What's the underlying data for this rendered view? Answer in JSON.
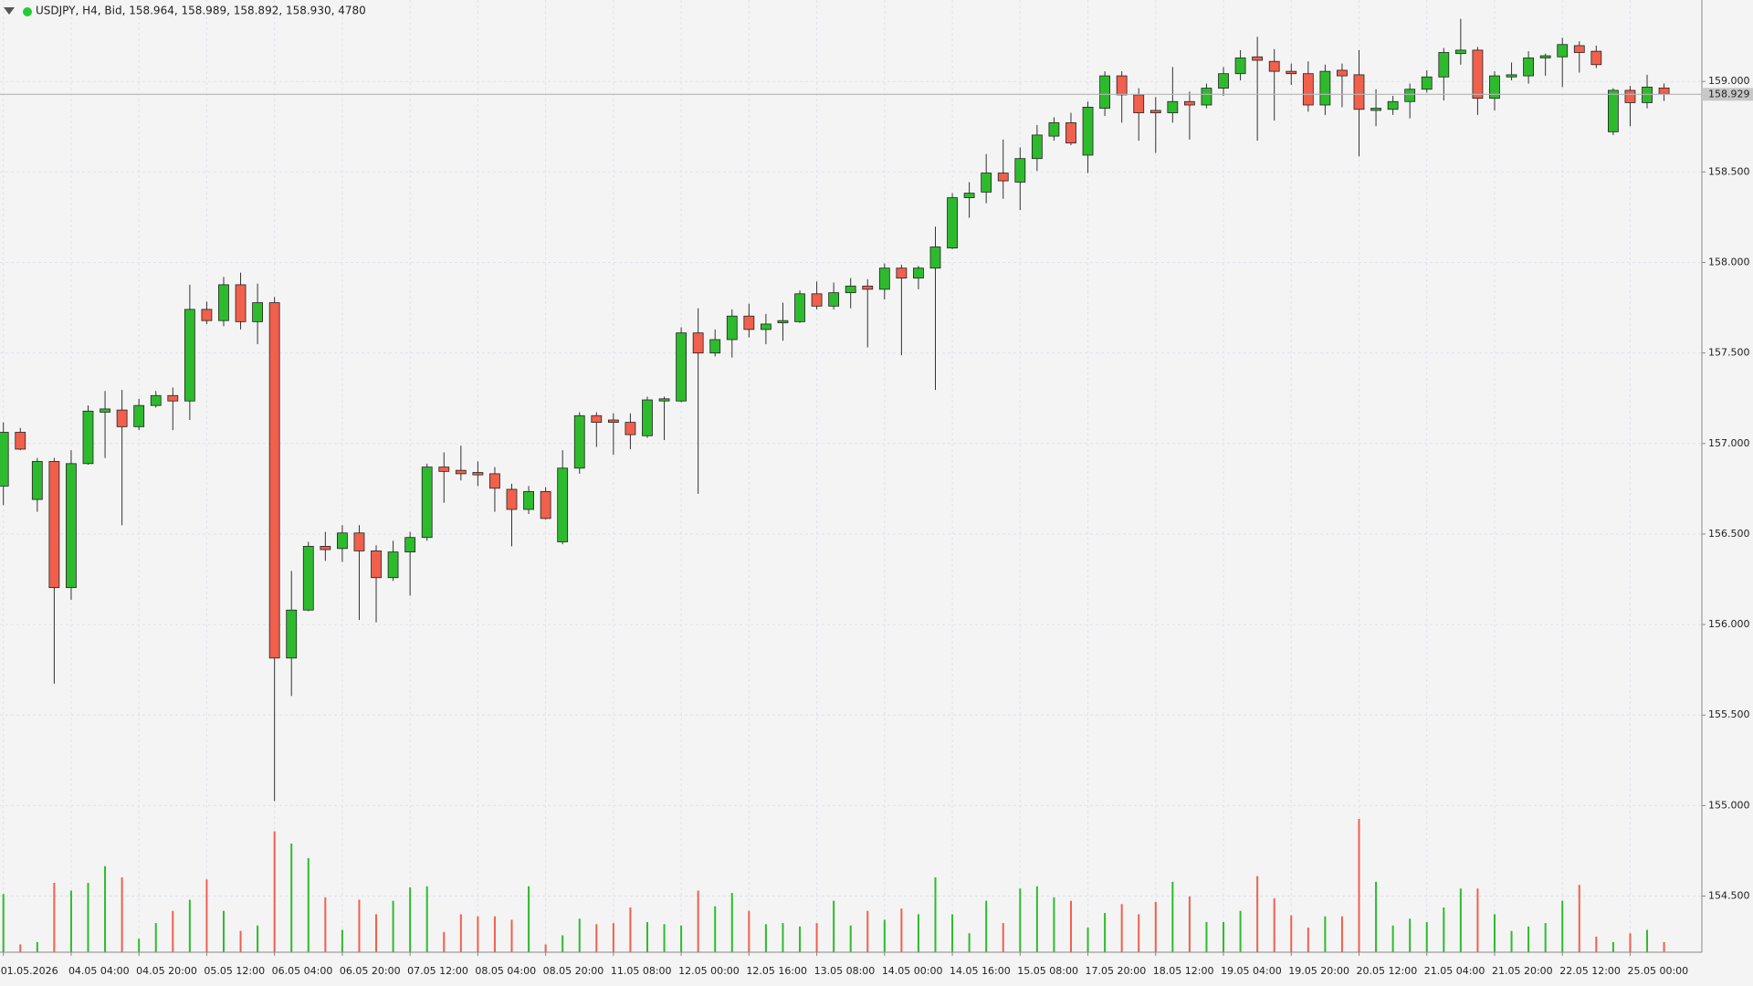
{
  "chart_data": {
    "type": "candlestick",
    "title": "USDJPY, H4, Bid, 158.964, 158.989, 158.892, 158.930, 4780",
    "up_color": "#2dbb2d",
    "down_color": "#f0604c",
    "grid": true,
    "ylim": [
      154.19,
      159.45
    ],
    "yticks": [
      {
        "value": 154.5,
        "label": "154.500"
      },
      {
        "value": 155,
        "label": "155.000"
      },
      {
        "value": 155.5,
        "label": "155.500"
      },
      {
        "value": 156,
        "label": "156.000"
      },
      {
        "value": 156.5,
        "label": "156.500"
      },
      {
        "value": 157,
        "label": "157.000"
      },
      {
        "value": 157.5,
        "label": "157.500"
      },
      {
        "value": 158,
        "label": "158.000"
      },
      {
        "value": 158.5,
        "label": "158.500"
      },
      {
        "value": 159,
        "label": "159.000"
      }
    ],
    "current_price": {
      "value": 158.929,
      "label": "158.929"
    },
    "categories": [
      "01.05.2026",
      null,
      null,
      null,
      "04.05 04:00",
      null,
      null,
      null,
      "04.05 20:00",
      null,
      null,
      null,
      "05.05 12:00",
      null,
      null,
      null,
      "06.05 04:00",
      null,
      null,
      null,
      "06.05 20:00",
      null,
      null,
      null,
      "07.05 12:00",
      null,
      null,
      null,
      "08.05 04:00",
      null,
      null,
      null,
      "08.05 20:00",
      null,
      null,
      null,
      "11.05 08:00",
      null,
      null,
      null,
      "12.05 00:00",
      null,
      null,
      null,
      "12.05 16:00",
      null,
      null,
      null,
      "13.05 08:00",
      null,
      null,
      null,
      "14.05 00:00",
      null,
      null,
      null,
      "14.05 16:00",
      null,
      null,
      null,
      "15.05 08:00",
      null,
      null,
      null,
      "17.05 20:00",
      null,
      null,
      null,
      "18.05 12:00",
      null,
      null,
      null,
      "19.05 04:00",
      null,
      null,
      null,
      "19.05 20:00",
      null,
      null,
      null,
      "20.05 12:00",
      null,
      null,
      null,
      "21.05 04:00",
      null,
      null,
      null,
      "21.05 20:00",
      null,
      null,
      null,
      "22.05 12:00",
      null,
      null,
      null,
      "25.05 00:00",
      null,
      null
    ],
    "open": [
      156.765,
      157.062,
      156.691,
      156.901,
      156.204,
      156.889,
      157.173,
      157.185,
      157.093,
      157.21,
      157.265,
      157.235,
      157.741,
      157.679,
      157.877,
      157.673,
      157.778,
      155.815,
      156.08,
      156.432,
      156.42,
      156.506,
      156.407,
      156.259,
      156.401,
      156.481,
      156.87,
      156.852,
      156.84,
      156.833,
      156.747,
      156.636,
      156.735,
      156.457,
      156.864,
      157.154,
      157.13,
      157.117,
      157.043,
      157.235,
      157.235,
      157.611,
      157.5,
      157.574,
      157.704,
      157.63,
      157.667,
      157.673,
      157.827,
      157.759,
      157.833,
      157.87,
      157.852,
      157.969,
      157.914,
      157.969,
      158.08,
      158.358,
      158.389,
      158.494,
      158.444,
      158.574,
      158.698,
      158.772,
      158.593,
      158.852,
      159.031,
      158.926,
      158.84,
      158.827,
      158.889,
      158.87,
      158.963,
      159.043,
      159.136,
      159.111,
      159.056,
      159.043,
      158.87,
      159.062,
      159.037,
      158.84,
      158.846,
      158.889,
      158.957,
      159.025,
      159.154,
      159.173,
      158.907,
      159.025,
      159.031,
      159.13,
      159.136,
      159.198,
      159.167,
      158.722,
      158.951,
      158.883,
      158.964
    ],
    "high": [
      157.117,
      157.086,
      156.92,
      156.92,
      156.963,
      157.21,
      157.29,
      157.296,
      157.247,
      157.29,
      157.309,
      157.877,
      157.784,
      157.92,
      157.944,
      157.883,
      157.809,
      156.296,
      156.457,
      156.512,
      156.549,
      156.549,
      156.438,
      156.463,
      156.512,
      156.889,
      156.951,
      156.988,
      156.901,
      156.87,
      156.778,
      156.765,
      156.759,
      156.963,
      157.173,
      157.173,
      157.167,
      157.167,
      157.259,
      157.259,
      157.642,
      157.747,
      157.63,
      157.741,
      157.772,
      157.716,
      157.778,
      157.846,
      157.895,
      157.889,
      157.914,
      157.907,
      157.994,
      157.988,
      157.981,
      158.198,
      158.383,
      158.444,
      158.599,
      158.679,
      158.636,
      158.759,
      158.802,
      158.827,
      158.889,
      159.056,
      159.056,
      158.963,
      158.914,
      159.08,
      158.944,
      158.988,
      159.08,
      159.173,
      159.247,
      159.179,
      159.099,
      159.111,
      159.093,
      159.099,
      159.173,
      158.957,
      158.92,
      158.988,
      159.062,
      159.185,
      159.346,
      159.191,
      159.056,
      159.105,
      159.167,
      159.154,
      159.241,
      159.222,
      159.198,
      158.963,
      158.975,
      159.037,
      158.989
    ],
    "low": [
      156.66,
      156.963,
      156.623,
      155.673,
      156.136,
      156.883,
      156.92,
      156.549,
      157.074,
      157.198,
      157.074,
      157.13,
      157.66,
      157.648,
      157.63,
      157.549,
      155.025,
      155.605,
      156.074,
      156.352,
      156.346,
      156.025,
      156.012,
      156.241,
      156.16,
      156.463,
      156.673,
      156.796,
      156.765,
      156.623,
      156.432,
      156.611,
      156.58,
      156.444,
      156.833,
      156.981,
      156.938,
      156.969,
      157.031,
      157.019,
      157.228,
      156.722,
      157.481,
      157.475,
      157.586,
      157.549,
      157.568,
      157.667,
      157.741,
      157.741,
      157.747,
      157.531,
      157.796,
      157.488,
      157.852,
      157.296,
      158.074,
      158.247,
      158.327,
      158.352,
      158.29,
      158.506,
      158.673,
      158.648,
      158.494,
      158.809,
      158.772,
      158.673,
      158.605,
      158.772,
      158.679,
      158.852,
      158.92,
      159.006,
      158.673,
      158.784,
      158.981,
      158.833,
      158.815,
      158.858,
      158.586,
      158.753,
      158.815,
      158.796,
      158.938,
      158.895,
      159.093,
      158.815,
      158.84,
      159.006,
      158.988,
      159.031,
      158.969,
      159.049,
      159.074,
      158.704,
      158.753,
      158.852,
      158.892
    ],
    "close": [
      157.062,
      156.969,
      156.901,
      156.204,
      156.889,
      157.179,
      157.191,
      157.093,
      157.21,
      157.265,
      157.235,
      157.741,
      157.679,
      157.877,
      157.673,
      157.778,
      155.815,
      156.08,
      156.432,
      156.414,
      156.506,
      156.407,
      156.259,
      156.401,
      156.481,
      156.87,
      156.846,
      156.833,
      156.827,
      156.753,
      156.636,
      156.735,
      156.586,
      156.864,
      157.154,
      157.117,
      157.117,
      157.049,
      157.241,
      157.247,
      157.611,
      157.5,
      157.574,
      157.704,
      157.63,
      157.66,
      157.679,
      157.827,
      157.759,
      157.833,
      157.87,
      157.852,
      157.969,
      157.914,
      157.969,
      158.086,
      158.358,
      158.383,
      158.494,
      158.451,
      158.574,
      158.704,
      158.772,
      158.66,
      158.858,
      159.031,
      158.926,
      158.827,
      158.827,
      158.889,
      158.87,
      158.963,
      159.043,
      159.13,
      159.117,
      159.056,
      159.043,
      158.87,
      159.056,
      159.031,
      158.846,
      158.852,
      158.889,
      158.957,
      159.025,
      159.16,
      159.173,
      158.907,
      159.031,
      159.037,
      159.13,
      159.142,
      159.204,
      159.16,
      159.093,
      158.951,
      158.883,
      158.969,
      158.93
    ],
    "volume": [
      27600,
      3700,
      4800,
      32900,
      29200,
      32900,
      40800,
      35500,
      6400,
      13800,
      19600,
      24900,
      34500,
      19600,
      10100,
      12700,
      57300,
      51500,
      44600,
      26000,
      10600,
      24900,
      18000,
      24400,
      30800,
      31300,
      9600,
      18000,
      17000,
      17000,
      15400,
      31300,
      3700,
      8000,
      15900,
      13300,
      13800,
      21200,
      14300,
      13300,
      12700,
      29200,
      21800,
      28100,
      19600,
      13300,
      13800,
      12200,
      13800,
      24400,
      12700,
      19600,
      15400,
      20700,
      18000,
      35500,
      18000,
      9000,
      24400,
      13800,
      30200,
      31300,
      26000,
      24400,
      11700,
      18600,
      22800,
      18000,
      23900,
      33400,
      26500,
      14300,
      14300,
      19600,
      36100,
      25500,
      17500,
      11700,
      17000,
      17000,
      63200,
      33400,
      12700,
      15900,
      14300,
      21200,
      30200,
      30200,
      18000,
      10100,
      12200,
      13800,
      24400,
      31900,
      7400,
      4800,
      9000,
      10600,
      4780
    ]
  }
}
